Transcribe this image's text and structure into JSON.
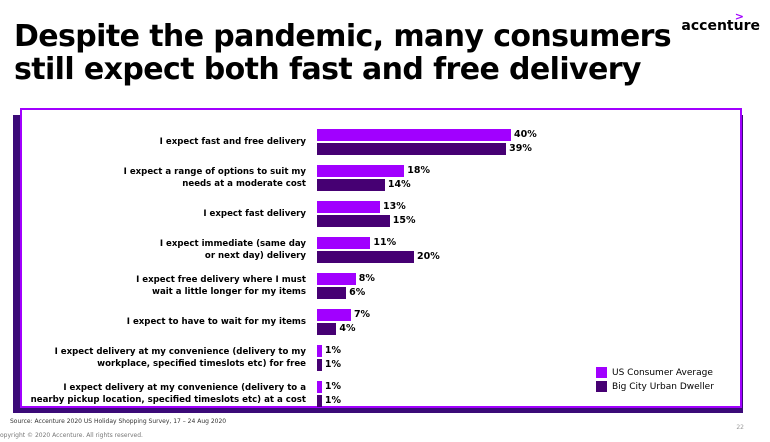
{
  "title": {
    "line1": "Despite the pandemic, many consumers",
    "line2": "still expect both fast and free delivery"
  },
  "logo": {
    "text": "accenture",
    "mark": ">"
  },
  "colors": {
    "us_average": "#a100ff",
    "urban_dweller": "#460073",
    "frame": "#a100ff"
  },
  "chart_data": {
    "type": "bar",
    "orientation": "horizontal",
    "categories": [
      "I expect fast and free delivery",
      "I expect a range of options to suit my needs at a moderate cost",
      "I expect fast delivery",
      "I expect immediate (same day or next day) delivery",
      "I expect free delivery where I must wait a little longer for my items",
      "I expect to have to wait for my items",
      "I expect delivery at my convenience (delivery to my workplace, specified timeslots etc) for free",
      "I expect delivery at my convenience (delivery to a nearby pickup location, specified timeslots etc) at a cost"
    ],
    "category_lines": [
      [
        "I expect fast and free delivery"
      ],
      [
        "I expect a range of options to suit my",
        "needs at a moderate cost"
      ],
      [
        "I expect fast delivery"
      ],
      [
        "I expect immediate (same day",
        "or next day) delivery"
      ],
      [
        "I expect free delivery where I must",
        "wait a little longer for my items"
      ],
      [
        "I expect to have to wait for my items"
      ],
      [
        "I expect delivery at my convenience (delivery to my",
        "workplace, specified timeslots etc) for free"
      ],
      [
        "I expect delivery at my convenience (delivery to a",
        "nearby pickup location, specified timeslots etc) at a cost"
      ]
    ],
    "series": [
      {
        "name": "US Consumer Average",
        "values": [
          40,
          18,
          13,
          11,
          8,
          7,
          1,
          1
        ],
        "labels": [
          "40%",
          "18%",
          "13%",
          "11%",
          "8%",
          "7%",
          "1%",
          "1%"
        ]
      },
      {
        "name": "Big City Urban Dweller",
        "values": [
          39,
          14,
          15,
          20,
          6,
          4,
          1,
          1
        ],
        "labels": [
          "39%",
          "14%",
          "15%",
          "20%",
          "6%",
          "4%",
          "1%",
          "1%"
        ]
      }
    ],
    "xlim": [
      0,
      45
    ],
    "grid": false,
    "legend_position": "bottom-right"
  },
  "footer": {
    "source": "Source:  Accenture 2020 US Holiday Shopping Survey, 17 – 24 Aug 2020",
    "copyright": "opyright © 2020 Accenture. All rights reserved.",
    "page": "22"
  }
}
